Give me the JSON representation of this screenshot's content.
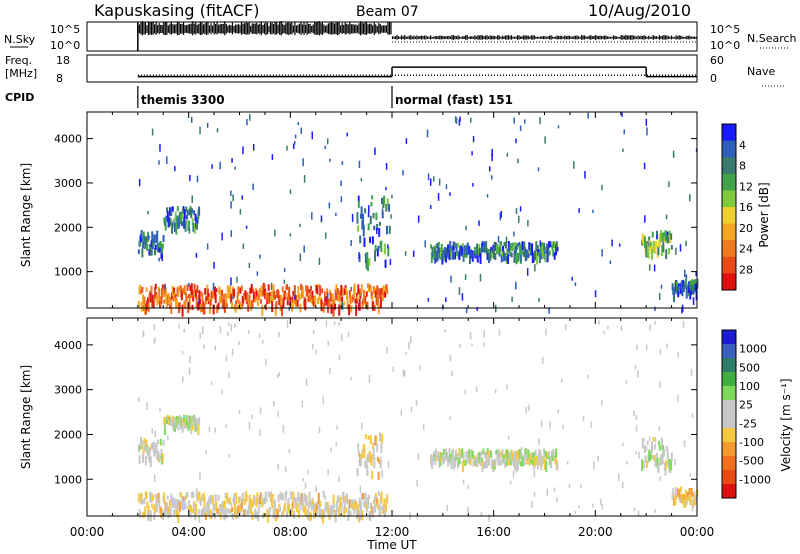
{
  "header": {
    "station": "Kapuskasing (fitACF)",
    "beam": "Beam 07",
    "date": "10/Aug/2010"
  },
  "status_panels": {
    "nsky_label": "N.Sky",
    "nsky_ticks": [
      "10^5",
      "10^0"
    ],
    "nsearch_label": "N.Search",
    "nsearch_ticks": [
      "10^5",
      "10^0"
    ],
    "freq_label_1": "Freq.",
    "freq_label_2": "[MHz]",
    "freq_ticks": [
      "18",
      "8"
    ],
    "nave_label": "Nave",
    "nave_ticks": [
      "60",
      "0"
    ],
    "cpid_label": "CPID",
    "cpid_segments": [
      {
        "start_hour": 2.0,
        "label": "themis 3300"
      },
      {
        "start_hour": 12.0,
        "label": "normal (fast) 151"
      }
    ],
    "freq_steps": [
      {
        "from": 2.0,
        "to": 12.0,
        "mhz": 10.5
      },
      {
        "from": 12.0,
        "to": 24.0,
        "mhz": 10.5
      }
    ],
    "nave_steps": [
      {
        "from": 2.0,
        "to": 12.0,
        "value": 12
      },
      {
        "from": 12.0,
        "to": 22.0,
        "value": 33
      },
      {
        "from": 22.0,
        "to": 24.0,
        "value": 12
      }
    ]
  },
  "chart_data": [
    {
      "type": "heatmap",
      "title": "",
      "xlabel": "Time UT",
      "ylabel": "Slant Range [km]",
      "xlim": [
        0,
        24
      ],
      "ylim": [
        180,
        4600
      ],
      "x_ticks": [
        "00:00",
        "04:00",
        "08:00",
        "12:00",
        "16:00",
        "20:00",
        "00:00"
      ],
      "y_ticks": [
        "1000",
        "2000",
        "3000",
        "4000"
      ],
      "colorbar": {
        "label": "Power [dB]",
        "ticks": [
          "4",
          "8",
          "12",
          "16",
          "20",
          "24",
          "28"
        ],
        "range": [
          0,
          30
        ],
        "colors": [
          "#1a1aff",
          "#2e5fb8",
          "#3a7a6e",
          "#3fa34a",
          "#7fc93f",
          "#f0d030",
          "#f5a623",
          "#f07a20",
          "#e84a1a",
          "#e01010"
        ]
      },
      "features": [
        {
          "from": 2.0,
          "to": 11.8,
          "range_from": 200,
          "range_to": 700,
          "level": 0.75
        },
        {
          "from": 2.0,
          "to": 3.0,
          "range_from": 1450,
          "range_to": 1900,
          "level": 0.15
        },
        {
          "from": 3.0,
          "to": 4.4,
          "range_from": 2050,
          "range_to": 2450,
          "level": 0.2
        },
        {
          "from": 10.6,
          "to": 11.9,
          "range_from": 1200,
          "range_to": 2700,
          "level": 0.2
        },
        {
          "from": 13.5,
          "to": 18.5,
          "range_from": 1350,
          "range_to": 1650,
          "level": 0.18
        },
        {
          "from": 21.8,
          "to": 23.0,
          "range_from": 1400,
          "range_to": 1900,
          "level": 0.35
        },
        {
          "from": 23.0,
          "to": 24.0,
          "range_from": 500,
          "range_to": 800,
          "level": 0.15
        }
      ]
    },
    {
      "type": "heatmap",
      "title": "",
      "xlabel": "Time UT",
      "ylabel": "Slant Range [km]",
      "xlim": [
        0,
        24
      ],
      "ylim": [
        180,
        4600
      ],
      "x_ticks": [
        "00:00",
        "04:00",
        "08:00",
        "12:00",
        "16:00",
        "20:00",
        "00:00"
      ],
      "y_ticks": [
        "1000",
        "2000",
        "3000",
        "4000"
      ],
      "colorbar": {
        "label": "Velocity [m s⁻¹]",
        "ticks": [
          "1000",
          "500",
          "100",
          "25",
          "-25",
          "-100",
          "-500",
          "-1000"
        ],
        "range": [
          -1200,
          1200
        ],
        "colors": [
          "#1c1cd0",
          "#3a5fbf",
          "#2e7d6a",
          "#3faf3f",
          "#7ed85a",
          "#c8c8c8",
          "#c8c8c8",
          "#f5c842",
          "#f59a30",
          "#f07020",
          "#e84a18",
          "#e01010"
        ]
      },
      "features": [
        {
          "from": 2.0,
          "to": 11.8,
          "range_from": 200,
          "range_to": 700,
          "velocity": -150
        },
        {
          "from": 2.0,
          "to": 3.0,
          "range_from": 1450,
          "range_to": 1900,
          "velocity": 0
        },
        {
          "from": 3.0,
          "to": 4.4,
          "range_from": 2200,
          "range_to": 2400,
          "velocity": 0
        },
        {
          "from": 10.6,
          "to": 11.6,
          "range_from": 1100,
          "range_to": 2000,
          "velocity": -200
        },
        {
          "from": 13.5,
          "to": 18.5,
          "range_from": 1350,
          "range_to": 1650,
          "velocity": 0
        },
        {
          "from": 21.8,
          "to": 23.0,
          "range_from": 1300,
          "range_to": 1900,
          "velocity": 0
        },
        {
          "from": 23.0,
          "to": 24.0,
          "range_from": 500,
          "range_to": 800,
          "velocity": -300
        }
      ]
    }
  ]
}
